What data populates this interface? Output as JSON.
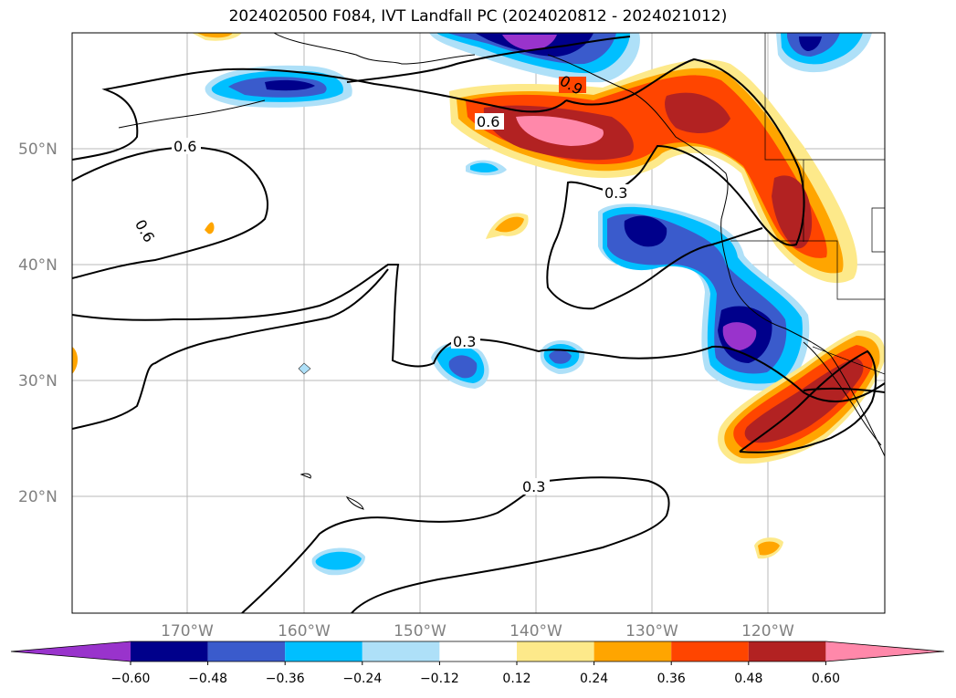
{
  "title": "2024020500 F084, IVT Landfall PC (2024020812 - 2024021012)",
  "map": {
    "lat_labels": [
      "50°N",
      "40°N",
      "30°N",
      "20°N"
    ],
    "lon_labels": [
      "170°W",
      "160°W",
      "150°W",
      "140°W",
      "130°W",
      "120°W"
    ],
    "contour_labels": [
      "0.6",
      "0.6",
      "0.6",
      "0.9",
      "0.3",
      "0.3",
      "0.3"
    ]
  },
  "colorbar": {
    "ticks": [
      "−0.60",
      "−0.48",
      "−0.36",
      "−0.24",
      "−0.12",
      "0.12",
      "0.24",
      "0.36",
      "0.48",
      "0.60"
    ],
    "colors": [
      "#9933cc",
      "#00008b",
      "#3a5bcc",
      "#00bfff",
      "#aee0f8",
      "#ffffff",
      "#fde98a",
      "#ffa500",
      "#ff4500",
      "#b22222",
      "#ff88aa"
    ]
  }
}
